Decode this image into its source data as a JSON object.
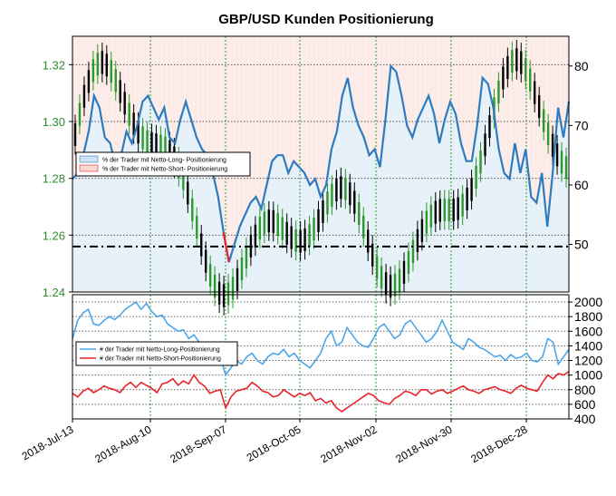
{
  "colors": {
    "long": "#2e7bbf",
    "short": "#e8242c",
    "long_count": "#4da6e8",
    "up_candle": "#2a9a2a",
    "down_candle": "#000000",
    "left_axis_text": "#2e8b2e",
    "grid_green": "#2e9a2e",
    "fill_long": "#cfe3f3",
    "fill_short": "#f8d8d2"
  },
  "chart_data": [
    {
      "type": "line",
      "title": "GBP/USD Kunden Positionierung",
      "y_left": {
        "ylim": [
          1.24,
          1.33
        ],
        "ticks": [
          "1.24",
          "1.26",
          "1.28",
          "1.30",
          "1.32"
        ]
      },
      "y_right": {
        "ylim": [
          42,
          85
        ],
        "ticks": [
          "50",
          "60",
          "70",
          "80"
        ]
      },
      "grid": true,
      "legend_position": "top-left",
      "legend": [
        "% der Trader mit Netto-Long- Positionierung",
        "% der Trader mit Netto-Short- Positionierung"
      ],
      "reference_line": 1.256,
      "series": [
        {
          "name": "% der Trader mit Netto-Long- Positionierung",
          "values": [
            61,
            62,
            65,
            69,
            75,
            73,
            68,
            67,
            63,
            65,
            69,
            67,
            70,
            74,
            75,
            73,
            71,
            73,
            68,
            67,
            71,
            74,
            71,
            68,
            66,
            65,
            62,
            58,
            52,
            47,
            50,
            53,
            55,
            57,
            58,
            56,
            60,
            64,
            65,
            65,
            62,
            64,
            63,
            62,
            60,
            61,
            58,
            60,
            66,
            69,
            75,
            78,
            73,
            70,
            68,
            65,
            66,
            63,
            71,
            80,
            79,
            75,
            70,
            68,
            71,
            73,
            75,
            72,
            67,
            71,
            74,
            72,
            67,
            64,
            64,
            70,
            78,
            77,
            73,
            66,
            62,
            61,
            67,
            62,
            66,
            58,
            57,
            62,
            53,
            62,
            73,
            68,
            74
          ]
        }
      ]
    },
    {
      "type": "line",
      "y_right": {
        "ylim": [
          400,
          2100
        ],
        "ticks": [
          "400",
          "600",
          "800",
          "1000",
          "1200",
          "1400",
          "1600",
          "1800",
          "2000"
        ]
      },
      "x_ticks": [
        "2018-Jul-13",
        "2018-Aug-10",
        "2018-Sep-07",
        "2018-Oct-05",
        "2018-Nov-02",
        "2018-Nov-30",
        "2018-Dec-28"
      ],
      "grid": true,
      "legend_position": "top-left",
      "legend": [
        "# der Trader mit Netto-Long-Positionierung",
        "# der Trader mit Netto-Short-Positionierung"
      ],
      "series": [
        {
          "name": "# der Trader mit Netto-Long-Positionierung",
          "values": [
            1500,
            1750,
            1850,
            1900,
            1700,
            1680,
            1750,
            1800,
            1760,
            1820,
            1900,
            1950,
            2000,
            1900,
            1980,
            1870,
            1800,
            1820,
            1700,
            1650,
            1600,
            1620,
            1500,
            1550,
            1450,
            1350,
            1300,
            1350,
            1250,
            1000,
            1100,
            1200,
            1150,
            1250,
            1300,
            1200,
            1150,
            1250,
            1300,
            1280,
            1350,
            1250,
            1300,
            1200,
            1150,
            1100,
            1200,
            1300,
            1500,
            1600,
            1400,
            1450,
            1650,
            1550,
            1450,
            1400,
            1380,
            1500,
            1650,
            1700,
            1600,
            1500,
            1550,
            1700,
            1750,
            1650,
            1550,
            1450,
            1500,
            1600,
            1750,
            1600,
            1450,
            1400,
            1350,
            1500,
            1450,
            1380,
            1350,
            1300,
            1250,
            1270,
            1200,
            1280,
            1230,
            1250,
            1300,
            1200,
            1180,
            1250,
            1500,
            1450,
            1150,
            1250,
            1350
          ]
        },
        {
          "name": "# der Trader mit Netto-Short-Positionierung",
          "values": [
            750,
            700,
            780,
            820,
            760,
            800,
            850,
            820,
            800,
            760,
            850,
            900,
            830,
            900,
            860,
            820,
            760,
            880,
            900,
            950,
            860,
            920,
            880,
            1000,
            900,
            850,
            750,
            780,
            800,
            550,
            700,
            780,
            800,
            820,
            900,
            850,
            780,
            760,
            700,
            720,
            800,
            750,
            700,
            750,
            720,
            760,
            650,
            680,
            620,
            650,
            550,
            500,
            550,
            600,
            650,
            700,
            750,
            720,
            650,
            620,
            600,
            680,
            720,
            780,
            760,
            720,
            800,
            800,
            740,
            780,
            800,
            750,
            780,
            820,
            850,
            800,
            780,
            750,
            800,
            820,
            840,
            800,
            780,
            750,
            820,
            860,
            820,
            800,
            780,
            900,
            1000,
            950,
            1020,
            1000,
            1050
          ]
        }
      ]
    }
  ]
}
